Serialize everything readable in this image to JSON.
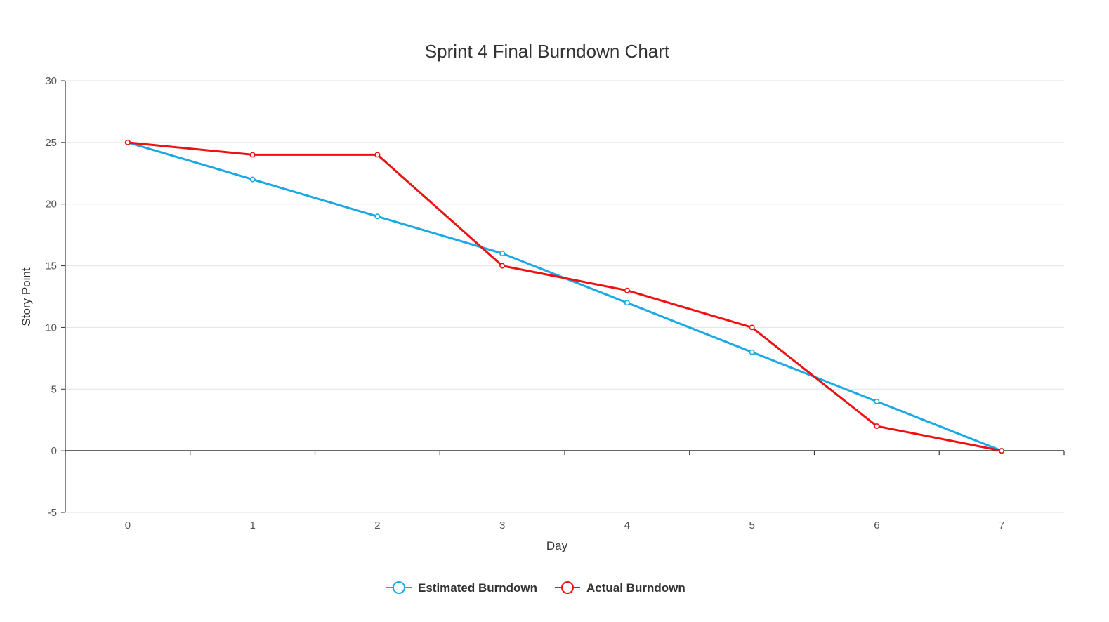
{
  "chart_data": {
    "type": "line",
    "title": "Sprint 4 Final Burndown Chart",
    "xlabel": "Day",
    "ylabel": "Story Point",
    "x": [
      0,
      1,
      2,
      3,
      4,
      5,
      6,
      7
    ],
    "xlim": [
      -0.5,
      7.5
    ],
    "ylim": [
      -5,
      30
    ],
    "yticks": [
      -5,
      0,
      5,
      10,
      15,
      20,
      25,
      30
    ],
    "grid": true,
    "legend_position": "bottom",
    "series": [
      {
        "name": "Estimated Burndown",
        "color": "#1ba9e6",
        "values": [
          25,
          22,
          19,
          16,
          12,
          8,
          4,
          0
        ]
      },
      {
        "name": "Actual Burndown",
        "color": "#ee1111",
        "values": [
          25,
          24,
          24,
          15,
          13,
          10,
          2,
          0
        ]
      }
    ]
  }
}
